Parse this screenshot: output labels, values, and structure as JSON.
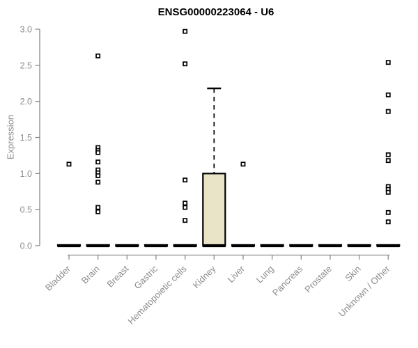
{
  "chart_data": {
    "type": "boxplot",
    "title": "ENSG00000223064 - U6",
    "ylabel": "Expression",
    "xlabel": "",
    "ylim": [
      0,
      3
    ],
    "ytick_labels": [
      "0.0",
      "0.5",
      "1.0",
      "1.5",
      "2.0",
      "2.5",
      "3.0"
    ],
    "grid": false,
    "legend": null,
    "categories": [
      "Bladder",
      "Brain",
      "Breast",
      "Gastric",
      "Hematopoietic cells",
      "Kidney",
      "Liver",
      "Lung",
      "Pancreas",
      "Prostate",
      "Skin",
      "Unknown / Other"
    ],
    "series": [
      {
        "category": "Bladder",
        "whisker_low": 0,
        "q1": 0,
        "median": 0,
        "q3": 0,
        "whisker_high": 0,
        "outliers": [
          1.13
        ]
      },
      {
        "category": "Brain",
        "whisker_low": 0,
        "q1": 0,
        "median": 0,
        "q3": 0,
        "whisker_high": 0,
        "outliers": [
          2.63,
          1.36,
          1.32,
          1.29,
          1.16,
          1.05,
          1.01,
          0.97,
          0.88,
          0.53,
          0.47
        ]
      },
      {
        "category": "Breast",
        "whisker_low": 0,
        "q1": 0,
        "median": 0,
        "q3": 0,
        "whisker_high": 0,
        "outliers": []
      },
      {
        "category": "Gastric",
        "whisker_low": 0,
        "q1": 0,
        "median": 0,
        "q3": 0,
        "whisker_high": 0,
        "outliers": []
      },
      {
        "category": "Hematopoietic cells",
        "whisker_low": 0,
        "q1": 0,
        "median": 0,
        "q3": 0,
        "whisker_high": 0,
        "outliers": [
          2.97,
          2.52,
          0.91,
          0.59,
          0.53,
          0.35
        ]
      },
      {
        "category": "Kidney",
        "whisker_low": 0,
        "q1": 0,
        "median": 0,
        "q3": 1.0,
        "whisker_high": 2.18,
        "outliers": []
      },
      {
        "category": "Liver",
        "whisker_low": 0,
        "q1": 0,
        "median": 0,
        "q3": 0,
        "whisker_high": 0,
        "outliers": [
          1.13
        ]
      },
      {
        "category": "Lung",
        "whisker_low": 0,
        "q1": 0,
        "median": 0,
        "q3": 0,
        "whisker_high": 0,
        "outliers": []
      },
      {
        "category": "Pancreas",
        "whisker_low": 0,
        "q1": 0,
        "median": 0,
        "q3": 0,
        "whisker_high": 0,
        "outliers": []
      },
      {
        "category": "Prostate",
        "whisker_low": 0,
        "q1": 0,
        "median": 0,
        "q3": 0,
        "whisker_high": 0,
        "outliers": []
      },
      {
        "category": "Skin",
        "whisker_low": 0,
        "q1": 0,
        "median": 0,
        "q3": 0,
        "whisker_high": 0,
        "outliers": []
      },
      {
        "category": "Unknown / Other",
        "whisker_low": 0,
        "q1": 0,
        "median": 0,
        "q3": 0,
        "whisker_high": 0,
        "outliers": [
          2.54,
          2.09,
          1.86,
          1.26,
          1.18,
          0.82,
          0.78,
          0.74,
          0.46,
          0.33
        ]
      }
    ],
    "colors": {
      "box_fill": "#e9e4c8",
      "box_stroke": "#000000",
      "median": "#000000",
      "whisker": "#000000",
      "outlier_stroke": "#000000",
      "outlier_fill": "#ffffff",
      "axis": "#8a8a8a",
      "tick_text": "#8c8c8c",
      "title_text": "#000000",
      "background": "#ffffff"
    }
  }
}
